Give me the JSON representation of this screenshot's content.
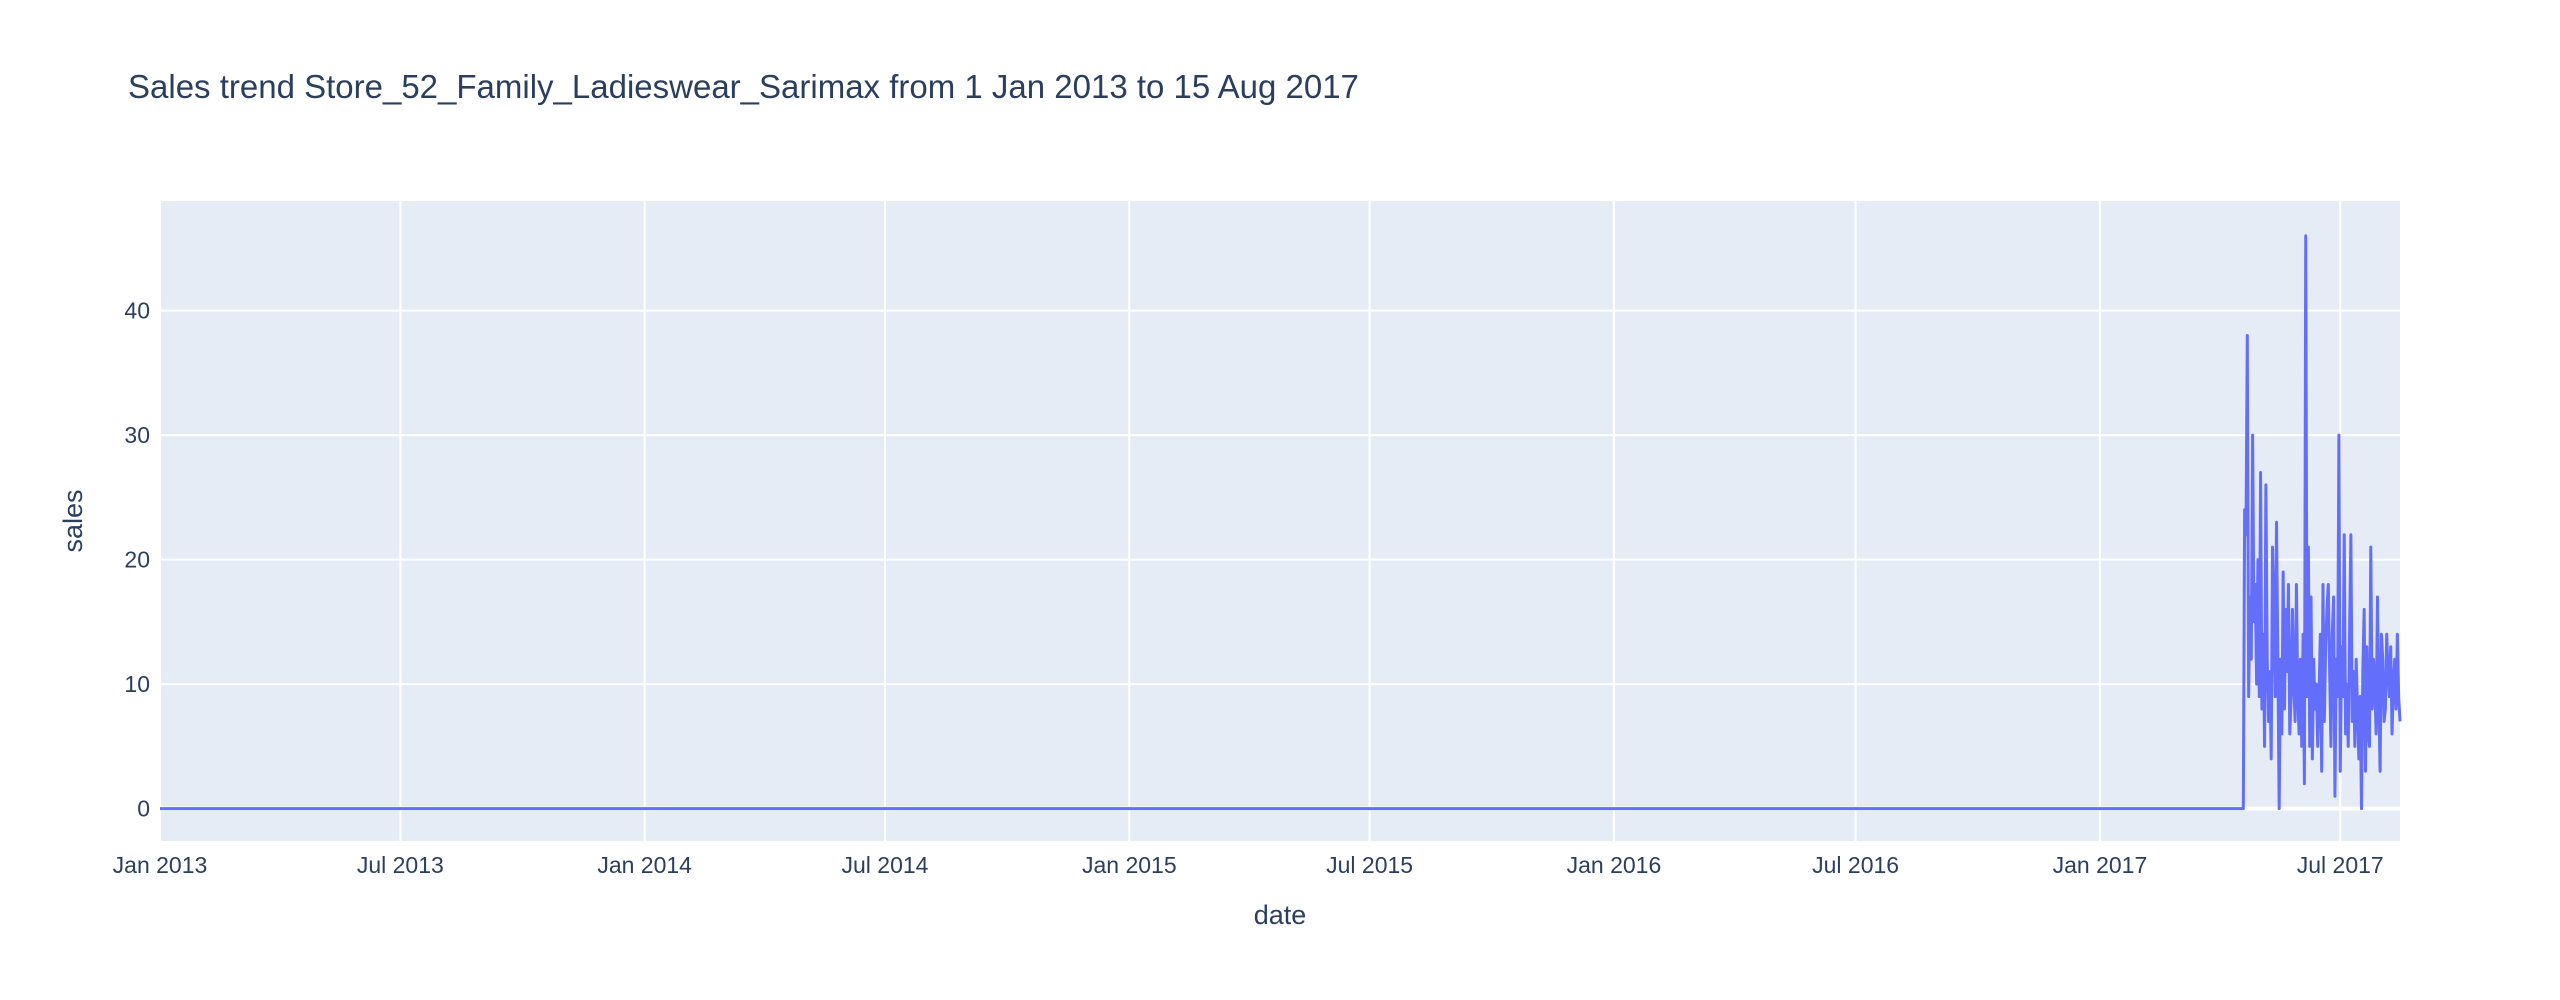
{
  "chart_data": {
    "type": "line",
    "title": "Sales trend Store_52_Family_Ladieswear_Sarimax from  1 Jan 2013 to 15 Aug 2017",
    "xlabel": "date",
    "ylabel": "sales",
    "xlim": [
      "2013-01-01",
      "2017-08-15"
    ],
    "ylim": [
      -2.6,
      48.8
    ],
    "x_ticks": [
      {
        "label": "Jan 2013",
        "date": "2013-01-01"
      },
      {
        "label": "Jul 2013",
        "date": "2013-07-01"
      },
      {
        "label": "Jan 2014",
        "date": "2014-01-01"
      },
      {
        "label": "Jul 2014",
        "date": "2014-07-01"
      },
      {
        "label": "Jan 2015",
        "date": "2015-01-01"
      },
      {
        "label": "Jul 2015",
        "date": "2015-07-01"
      },
      {
        "label": "Jan 2016",
        "date": "2016-01-01"
      },
      {
        "label": "Jul 2016",
        "date": "2016-07-01"
      },
      {
        "label": "Jan 2017",
        "date": "2017-01-01"
      },
      {
        "label": "Jul 2017",
        "date": "2017-07-01"
      }
    ],
    "y_ticks": [
      0,
      10,
      20,
      30,
      40
    ],
    "grid": true,
    "line_color": "#636efa",
    "plot_bgcolor": "#e5ecf6",
    "series": [
      {
        "x": [
          "2013-01-01",
          "2017-04-19",
          "2017-04-20",
          "2017-04-21",
          "2017-04-22",
          "2017-04-23",
          "2017-04-24",
          "2017-04-25",
          "2017-04-26",
          "2017-04-27",
          "2017-04-28",
          "2017-04-29",
          "2017-04-30",
          "2017-05-01",
          "2017-05-02",
          "2017-05-03",
          "2017-05-04",
          "2017-05-05",
          "2017-05-06",
          "2017-05-07",
          "2017-05-08",
          "2017-05-09",
          "2017-05-10",
          "2017-05-11",
          "2017-05-12",
          "2017-05-13",
          "2017-05-14",
          "2017-05-15",
          "2017-05-16",
          "2017-05-17",
          "2017-05-18",
          "2017-05-19",
          "2017-05-20",
          "2017-05-21",
          "2017-05-22",
          "2017-05-23",
          "2017-05-24",
          "2017-05-25",
          "2017-05-26",
          "2017-05-27",
          "2017-05-28",
          "2017-05-29",
          "2017-05-30",
          "2017-05-31",
          "2017-06-01",
          "2017-06-02",
          "2017-06-03",
          "2017-06-04",
          "2017-06-05",
          "2017-06-06",
          "2017-06-07",
          "2017-06-08",
          "2017-06-09",
          "2017-06-10",
          "2017-06-11",
          "2017-06-12",
          "2017-06-13",
          "2017-06-14",
          "2017-06-15",
          "2017-06-16",
          "2017-06-17",
          "2017-06-18",
          "2017-06-19",
          "2017-06-20",
          "2017-06-21",
          "2017-06-22",
          "2017-06-23",
          "2017-06-24",
          "2017-06-25",
          "2017-06-26",
          "2017-06-27",
          "2017-06-28",
          "2017-06-29",
          "2017-06-30",
          "2017-07-01",
          "2017-07-02",
          "2017-07-03",
          "2017-07-04",
          "2017-07-05",
          "2017-07-06",
          "2017-07-07",
          "2017-07-08",
          "2017-07-09",
          "2017-07-10",
          "2017-07-11",
          "2017-07-12",
          "2017-07-13",
          "2017-07-14",
          "2017-07-15",
          "2017-07-16",
          "2017-07-17",
          "2017-07-18",
          "2017-07-19",
          "2017-07-20",
          "2017-07-21",
          "2017-07-22",
          "2017-07-23",
          "2017-07-24",
          "2017-07-25",
          "2017-07-26",
          "2017-07-27",
          "2017-07-28",
          "2017-07-29",
          "2017-07-30",
          "2017-07-31",
          "2017-08-01",
          "2017-08-02",
          "2017-08-03",
          "2017-08-04",
          "2017-08-05",
          "2017-08-06",
          "2017-08-07",
          "2017-08-08",
          "2017-08-09",
          "2017-08-10",
          "2017-08-11",
          "2017-08-12",
          "2017-08-13",
          "2017-08-14",
          "2017-08-15"
        ],
        "y": [
          0,
          0,
          24,
          22,
          38,
          9,
          17,
          12,
          30,
          15,
          18,
          10,
          20,
          9,
          27,
          8,
          14,
          5,
          26,
          12,
          7,
          11,
          4,
          21,
          16,
          9,
          23,
          12,
          0,
          12,
          6,
          19,
          8,
          16,
          11,
          18,
          6,
          9,
          16,
          10,
          7,
          18,
          9,
          6,
          12,
          5,
          14,
          2,
          46,
          9,
          21,
          5,
          17,
          4,
          12,
          8,
          10,
          5,
          9,
          14,
          3,
          18,
          7,
          13,
          16,
          18,
          11,
          5,
          14,
          17,
          1,
          12,
          9,
          30,
          3,
          13,
          9,
          22,
          6,
          10,
          5,
          14,
          22,
          7,
          11,
          5,
          12,
          8,
          4,
          9,
          0,
          11,
          16,
          3,
          13,
          6,
          5,
          21,
          8,
          12,
          10,
          6,
          17,
          9,
          3,
          14,
          12,
          7,
          8,
          14,
          11,
          9,
          13,
          6,
          10,
          12,
          8,
          14,
          9,
          7
        ]
      }
    ]
  }
}
